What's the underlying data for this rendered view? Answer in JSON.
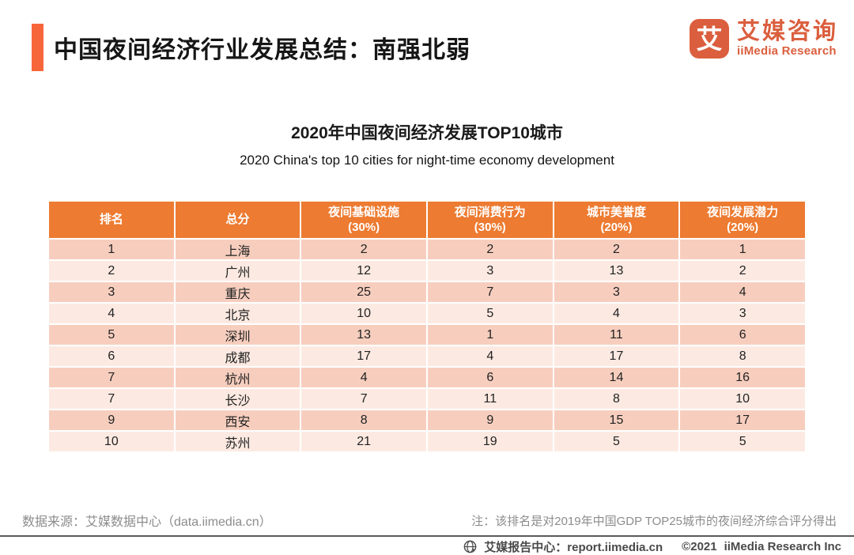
{
  "header": {
    "title": "中国夜间经济行业发展总结：南强北弱"
  },
  "logo": {
    "icon_char": "艾",
    "name_cn": "艾媒咨询",
    "name_en": "iiMedia Research"
  },
  "chart_data": {
    "type": "table",
    "title": "2020年中国夜间经济发展TOP10城市",
    "subtitle": "2020 China's top 10 cities for night-time economy development",
    "columns": [
      {
        "label": "排名",
        "sub": ""
      },
      {
        "label": "总分",
        "sub": ""
      },
      {
        "label": "夜间基础设施",
        "sub": "(30%)"
      },
      {
        "label": "夜间消费行为",
        "sub": "(30%)"
      },
      {
        "label": "城市美誉度",
        "sub": "(20%)"
      },
      {
        "label": "夜间发展潜力",
        "sub": "(20%)"
      }
    ],
    "rows": [
      [
        "1",
        "上海",
        "2",
        "2",
        "2",
        "1"
      ],
      [
        "2",
        "广州",
        "12",
        "3",
        "13",
        "2"
      ],
      [
        "3",
        "重庆",
        "25",
        "7",
        "3",
        "4"
      ],
      [
        "4",
        "北京",
        "10",
        "5",
        "4",
        "3"
      ],
      [
        "5",
        "深圳",
        "13",
        "1",
        "11",
        "6"
      ],
      [
        "6",
        "成都",
        "17",
        "4",
        "17",
        "8"
      ],
      [
        "7",
        "杭州",
        "4",
        "6",
        "14",
        "16"
      ],
      [
        "7",
        "长沙",
        "7",
        "11",
        "8",
        "10"
      ],
      [
        "9",
        "西安",
        "8",
        "9",
        "15",
        "17"
      ],
      [
        "10",
        "苏州",
        "21",
        "19",
        "5",
        "5"
      ]
    ]
  },
  "footer": {
    "source": "数据来源：艾媒数据中心（data.iimedia.cn）",
    "note": "注：该排名是对2019年中国GDP TOP25城市的夜间经济综合评分得出",
    "report_center": "艾媒报告中心：report.iimedia.cn",
    "copyright": "©2021",
    "company": "iiMedia Research Inc"
  },
  "colors": {
    "accent": "#F7663A",
    "table_header": "#ED7B31",
    "row_odd": "#F7CEBE",
    "row_even": "#FCEAE2",
    "logo_orange": "#DB5F3E",
    "muted": "#8C8C8C",
    "footer_ink": "#4A4A4A"
  }
}
